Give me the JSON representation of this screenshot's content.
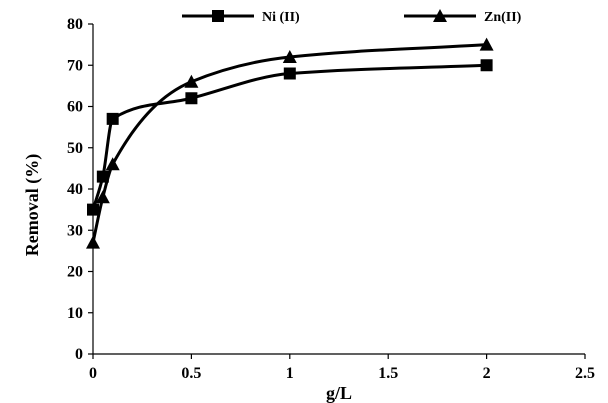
{
  "chart_data": {
    "type": "line",
    "title": "",
    "xlabel": "g/L",
    "ylabel": "Removal (%)",
    "xlim": [
      0,
      2.5
    ],
    "ylim": [
      0,
      80
    ],
    "x_ticks": [
      "0",
      "0.5",
      "1",
      "1.5",
      "2",
      "2.5"
    ],
    "y_ticks": [
      "0",
      "10",
      "20",
      "30",
      "40",
      "50",
      "60",
      "70",
      "80"
    ],
    "grid": false,
    "legend_position": "top",
    "series": [
      {
        "name": "Ni (II)",
        "marker": "square",
        "color": "#000000",
        "smooth": true,
        "x": [
          0,
          0.05,
          0.1,
          0.5,
          1,
          2
        ],
        "y": [
          35,
          43,
          57,
          62,
          68,
          70
        ]
      },
      {
        "name": "Zn(II)",
        "marker": "triangle",
        "color": "#000000",
        "smooth": true,
        "x": [
          0,
          0.05,
          0.1,
          0.5,
          1,
          2
        ],
        "y": [
          27,
          38,
          46,
          66,
          72,
          75
        ]
      }
    ]
  }
}
